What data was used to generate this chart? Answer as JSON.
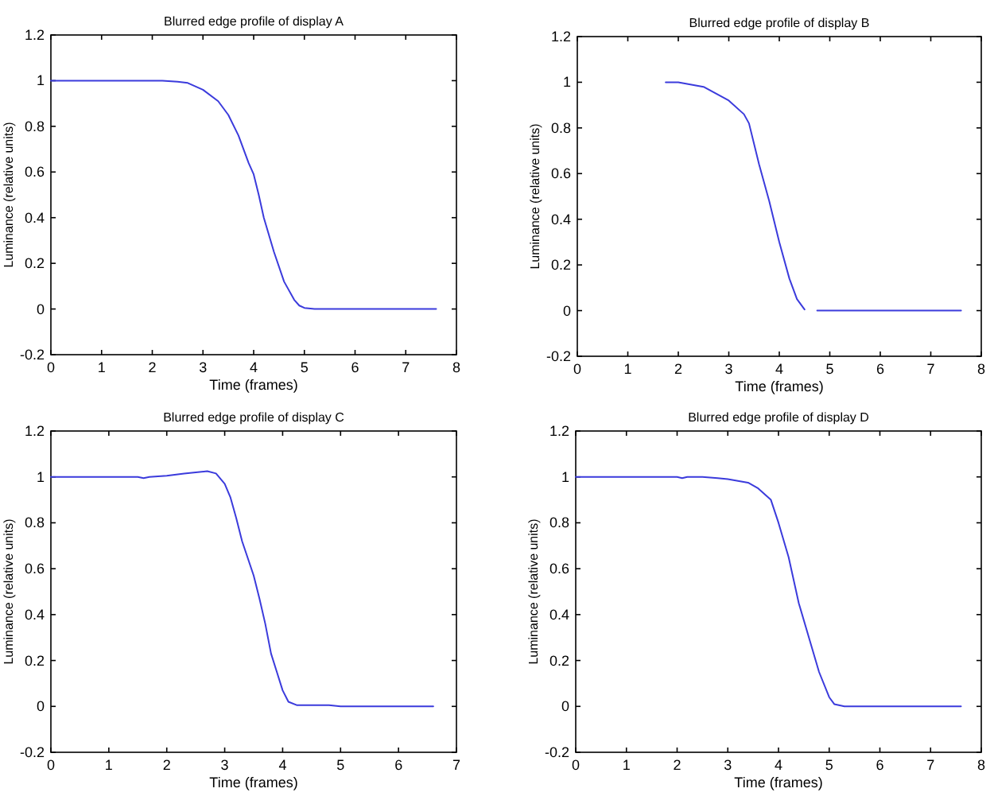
{
  "chart_data": [
    {
      "type": "line",
      "title": "Blurred edge profile of display A",
      "xlabel": "Time (frames)",
      "ylabel": "Luminance (relative units)",
      "xlim": [
        0,
        8
      ],
      "xticks": [
        0,
        1,
        2,
        3,
        4,
        5,
        6,
        7,
        8
      ],
      "ylim": [
        -0.2,
        1.2
      ],
      "yticks": [
        -0.2,
        0,
        0.2,
        0.4,
        0.6,
        0.8,
        1,
        1.2
      ],
      "x": [
        0,
        1,
        2,
        2.2,
        2.5,
        2.7,
        3,
        3.3,
        3.5,
        3.7,
        3.9,
        4,
        4.1,
        4.2,
        4.4,
        4.6,
        4.8,
        4.9,
        5,
        5.2,
        6,
        7,
        7.6
      ],
      "series": [
        {
          "color": "#3b3bdc",
          "values": [
            1,
            1,
            1,
            1,
            0.995,
            0.99,
            0.96,
            0.91,
            0.85,
            0.76,
            0.64,
            0.59,
            0.5,
            0.4,
            0.25,
            0.12,
            0.04,
            0.015,
            0.005,
            0,
            0,
            0,
            0
          ]
        }
      ]
    },
    {
      "type": "line",
      "title": "Blurred edge profile of display B",
      "xlabel": "Time (frames)",
      "ylabel": "Luminance (relative units)",
      "xlim": [
        0,
        8
      ],
      "xticks": [
        0,
        1,
        2,
        3,
        4,
        5,
        6,
        7,
        8
      ],
      "ylim": [
        -0.2,
        1.2
      ],
      "yticks": [
        -0.2,
        0,
        0.2,
        0.4,
        0.6,
        0.8,
        1,
        1.2
      ],
      "x": [
        1.75,
        2,
        2.5,
        3,
        3.3,
        3.4,
        3.6,
        3.8,
        4,
        4.2,
        4.35,
        4.5,
        4.6,
        4.75,
        6,
        7.6
      ],
      "series": [
        {
          "color": "#3b3bdc",
          "values": [
            1,
            1,
            0.98,
            0.92,
            0.86,
            0.82,
            0.64,
            0.48,
            0.3,
            0.14,
            0.05,
            0.005,
            null,
            0,
            0,
            0
          ]
        }
      ]
    },
    {
      "type": "line",
      "title": "Blurred edge profile of display C",
      "xlabel": "Time (frames)",
      "ylabel": "Luminance (relative units)",
      "xlim": [
        0,
        7
      ],
      "xticks": [
        0,
        1,
        2,
        3,
        4,
        5,
        6,
        7
      ],
      "ylim": [
        -0.2,
        1.2
      ],
      "yticks": [
        -0.2,
        0,
        0.2,
        0.4,
        0.6,
        0.8,
        1,
        1.2
      ],
      "x": [
        0,
        1,
        1.5,
        1.6,
        1.7,
        2,
        2.3,
        2.5,
        2.7,
        2.85,
        3,
        3.1,
        3.2,
        3.3,
        3.5,
        3.6,
        3.7,
        3.8,
        3.9,
        4,
        4.1,
        4.25,
        4.8,
        5,
        6.6
      ],
      "series": [
        {
          "color": "#3b3bdc",
          "values": [
            1,
            1,
            1,
            0.995,
            1,
            1.005,
            1.015,
            1.02,
            1.025,
            1.015,
            0.97,
            0.91,
            0.82,
            0.72,
            0.57,
            0.47,
            0.36,
            0.23,
            0.15,
            0.07,
            0.02,
            0.005,
            0.005,
            0,
            0
          ]
        }
      ]
    },
    {
      "type": "line",
      "title": "Blurred edge profile of display D",
      "xlabel": "Time (frames)",
      "ylabel": "Luminance (relative units)",
      "xlim": [
        0,
        8
      ],
      "xticks": [
        0,
        1,
        2,
        3,
        4,
        5,
        6,
        7,
        8
      ],
      "ylim": [
        -0.2,
        1.2
      ],
      "yticks": [
        -0.2,
        0,
        0.2,
        0.4,
        0.6,
        0.8,
        1,
        1.2
      ],
      "x": [
        0,
        2,
        2.1,
        2.2,
        2.5,
        2.8,
        3,
        3.4,
        3.6,
        3.85,
        4,
        4.2,
        4.4,
        4.6,
        4.8,
        5,
        5.1,
        5.3,
        7.6
      ],
      "series": [
        {
          "color": "#3b3bdc",
          "values": [
            1,
            1,
            0.995,
            1,
            1,
            0.995,
            0.99,
            0.975,
            0.95,
            0.9,
            0.8,
            0.65,
            0.45,
            0.3,
            0.15,
            0.04,
            0.01,
            0,
            0
          ]
        }
      ]
    }
  ]
}
